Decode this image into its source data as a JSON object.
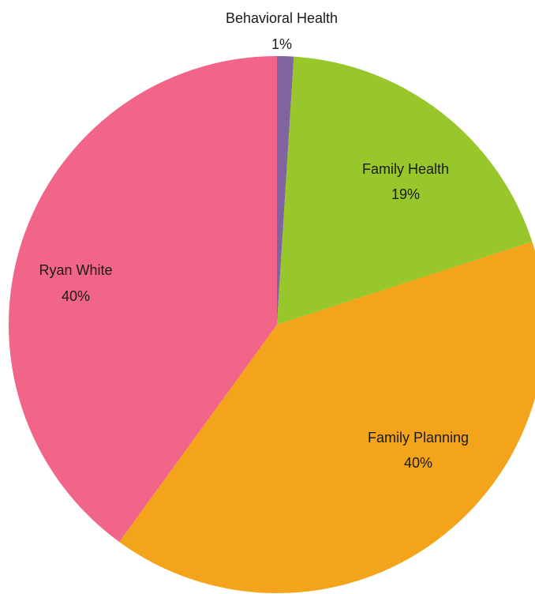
{
  "chart_data": {
    "type": "pie",
    "title": "",
    "start_angle_deg": 0,
    "direction": "clockwise",
    "slices": [
      {
        "name": "Behavioral Health",
        "value": 1,
        "label": "1%",
        "color": "#8064a2"
      },
      {
        "name": "Family Health",
        "value": 19,
        "label": "19%",
        "color": "#97c72a"
      },
      {
        "name": "Family Planning",
        "value": 40,
        "label": "40%",
        "color": "#f4a41b"
      },
      {
        "name": "Ryan White",
        "value": 40,
        "label": "40%",
        "color": "#f06588"
      }
    ]
  }
}
